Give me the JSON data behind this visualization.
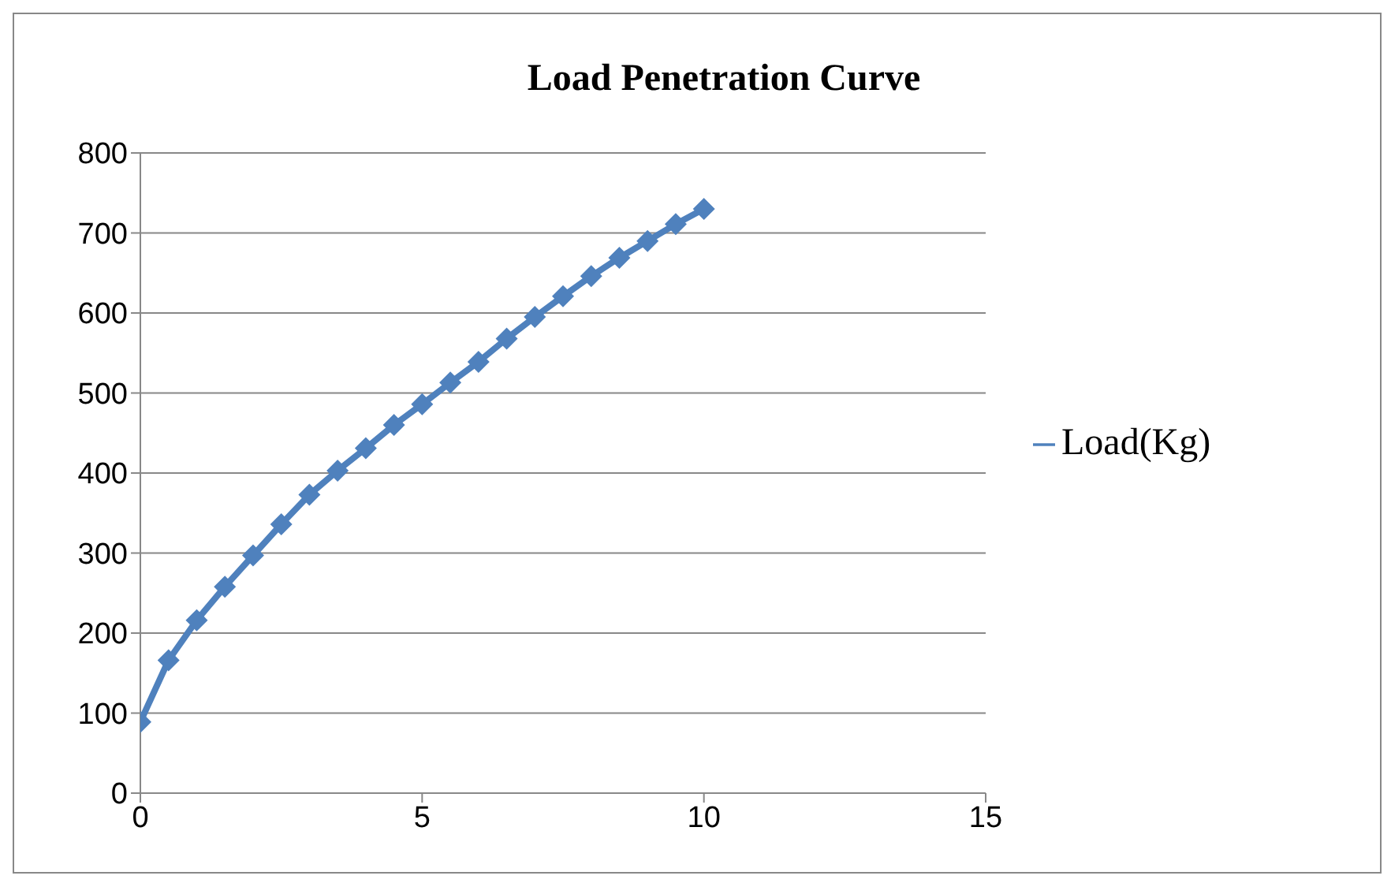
{
  "chart_data": {
    "type": "line",
    "title": "Load Penetration Curve",
    "x": [
      0,
      0.5,
      1,
      1.5,
      2,
      2.5,
      3,
      3.5,
      4,
      4.5,
      5,
      5.5,
      6,
      6.5,
      7,
      7.5,
      8,
      8.5,
      9,
      9.5,
      10
    ],
    "series": [
      {
        "name": "Load(Kg)",
        "color": "#4f81bd",
        "values": [
          89,
          166,
          216,
          258,
          297,
          336,
          373,
          403,
          431,
          460,
          486,
          513,
          539,
          568,
          595,
          621,
          646,
          669,
          690,
          711,
          730
        ]
      }
    ],
    "xlim": [
      0,
      15
    ],
    "xticks": [
      0,
      5,
      10,
      15
    ],
    "ylim": [
      0,
      800
    ],
    "yticks": [
      0,
      100,
      200,
      300,
      400,
      500,
      600,
      700,
      800
    ],
    "grid": "y",
    "legend": "right",
    "marker": "diamond",
    "line_style": "solid"
  }
}
